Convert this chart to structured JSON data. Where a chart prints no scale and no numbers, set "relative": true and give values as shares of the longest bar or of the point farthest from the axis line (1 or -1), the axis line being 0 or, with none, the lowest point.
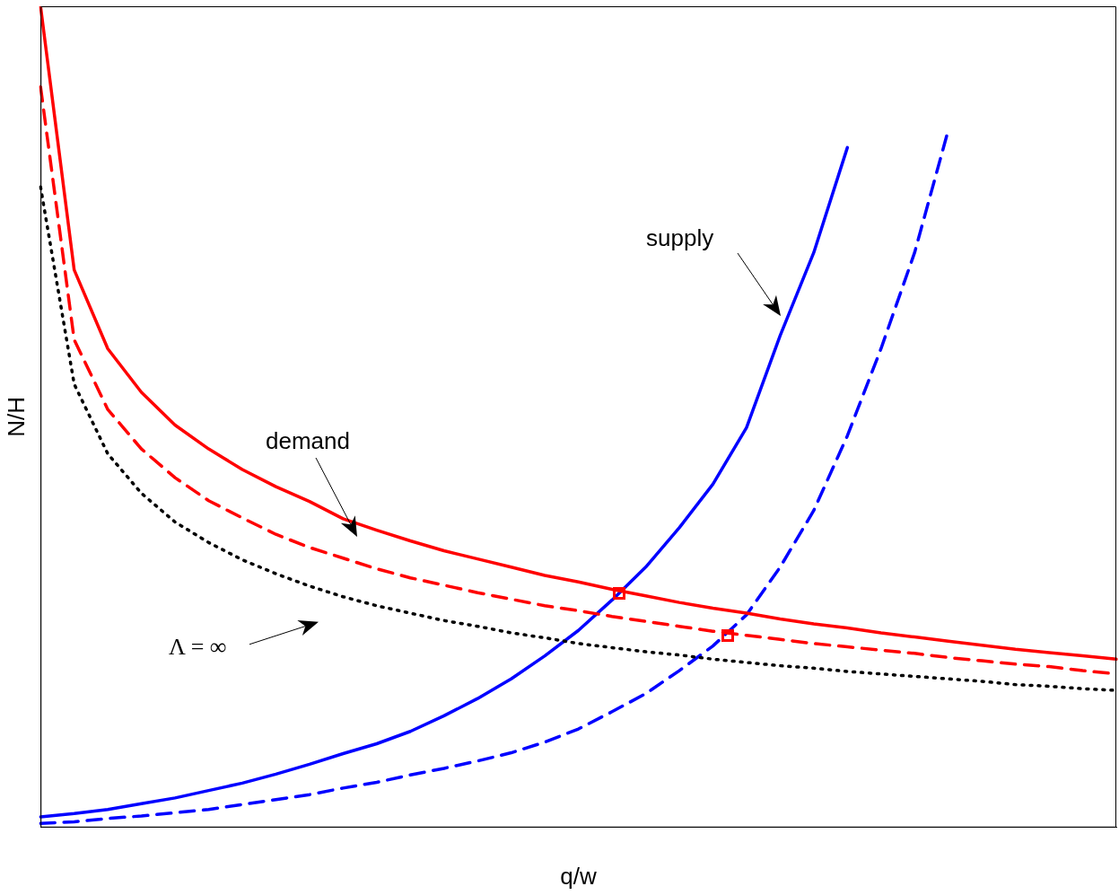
{
  "chart_data": {
    "type": "line",
    "relative": true,
    "xlabel": "q/w",
    "ylabel": "N/H",
    "legend": false,
    "grid": false,
    "categories": [
      null,
      null,
      null,
      null,
      null,
      null,
      null,
      null,
      null,
      null,
      null,
      null,
      null,
      null,
      null,
      null,
      null,
      null,
      null,
      null,
      null,
      null,
      null,
      null,
      null,
      null,
      null,
      null,
      null,
      null,
      null,
      null,
      null
    ],
    "series": [
      {
        "color": "#ff0000",
        "line_style": "solid",
        "values": [
          1.0,
          0.679,
          0.583,
          0.53,
          0.49,
          0.461,
          0.436,
          0.415,
          0.397,
          0.376,
          0.362,
          0.349,
          0.337,
          0.327,
          0.317,
          0.307,
          0.299,
          0.29,
          0.282,
          0.274,
          0.267,
          0.261,
          0.254,
          0.248,
          0.243,
          0.237,
          0.232,
          0.227,
          0.222,
          0.217,
          0.213,
          0.209,
          0.205
        ]
      },
      {
        "color": "#ff0000",
        "line_style": "dashed",
        "values": [
          0.902,
          0.594,
          0.509,
          0.461,
          0.426,
          0.398,
          0.377,
          0.357,
          0.341,
          0.328,
          0.315,
          0.304,
          0.295,
          0.286,
          0.278,
          0.27,
          0.264,
          0.257,
          0.251,
          0.245,
          0.239,
          0.234,
          0.229,
          0.224,
          0.22,
          0.216,
          0.212,
          0.207,
          0.203,
          0.199,
          0.196,
          0.191,
          0.187
        ]
      },
      {
        "color": "#000000",
        "line_style": "dotted",
        "values": [
          0.78,
          0.54,
          0.455,
          0.407,
          0.372,
          0.347,
          0.326,
          0.309,
          0.294,
          0.281,
          0.27,
          0.261,
          0.252,
          0.245,
          0.237,
          0.231,
          0.224,
          0.219,
          0.214,
          0.21,
          0.205,
          0.201,
          0.197,
          0.194,
          0.19,
          0.187,
          0.184,
          0.181,
          0.178,
          0.174,
          0.172,
          0.169,
          0.167
        ]
      },
      {
        "color": "#0000ff",
        "line_style": "solid",
        "values": [
          0.013,
          0.017,
          0.022,
          0.029,
          0.036,
          0.045,
          0.054,
          0.065,
          0.077,
          0.09,
          0.102,
          0.117,
          0.136,
          0.157,
          0.181,
          0.209,
          0.24,
          0.277,
          0.317,
          0.365,
          0.418,
          0.487,
          0.599,
          0.7,
          0.828,
          null,
          null,
          null,
          null,
          null,
          null,
          null,
          null
        ]
      },
      {
        "color": "#0000ff",
        "line_style": "dashed",
        "values": [
          0.005,
          0.007,
          0.011,
          0.014,
          0.018,
          0.022,
          0.028,
          0.034,
          0.04,
          0.048,
          0.055,
          0.064,
          0.072,
          0.081,
          0.091,
          0.104,
          0.12,
          0.141,
          0.163,
          0.191,
          0.221,
          0.259,
          0.317,
          0.386,
          0.477,
          0.583,
          0.7,
          0.849,
          null,
          null,
          null,
          null,
          null
        ]
      }
    ],
    "annotations": [
      "supply",
      "demand",
      "Λ = ∞"
    ]
  }
}
